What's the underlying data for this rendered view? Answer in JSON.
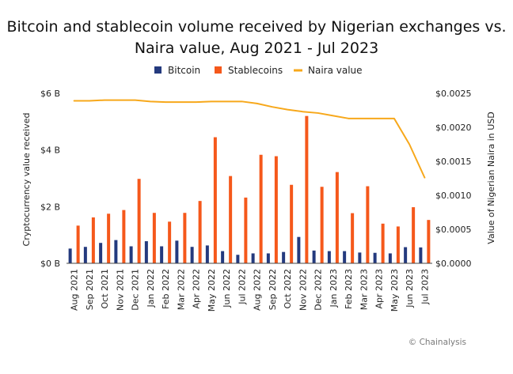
{
  "chart_data": {
    "type": "bar",
    "title": [
      "Bitcoin and stablecoin volume received by Nigerian exchanges vs.",
      "Naira value, Aug 2021 - Jul 2023"
    ],
    "categories": [
      "Aug 2021",
      "Sep 2021",
      "Oct 2021",
      "Nov 2021",
      "Dec 2021",
      "Jan 2022",
      "Feb 2022",
      "Mar 2022",
      "Apr 2022",
      "May 2022",
      "Jun 2022",
      "Jul 2022",
      "Aug 2022",
      "Sep 2022",
      "Oct 2022",
      "Nov 2022",
      "Dec 2022",
      "Jan 2023",
      "Feb 2023",
      "Mar 2023",
      "Apr 2023",
      "May 2023",
      "Jun 2023",
      "Jul 2023"
    ],
    "series": [
      {
        "name": "Bitcoin",
        "type": "bar",
        "axis": "left",
        "color": "#243a7e",
        "values": [
          0.52,
          0.58,
          0.72,
          0.82,
          0.6,
          0.78,
          0.6,
          0.8,
          0.58,
          0.63,
          0.43,
          0.3,
          0.35,
          0.35,
          0.4,
          0.93,
          0.45,
          0.43,
          0.43,
          0.38,
          0.37,
          0.35,
          0.57,
          0.56
        ]
      },
      {
        "name": "Stablecoins",
        "type": "bar",
        "axis": "left",
        "color": "#f5581b",
        "values": [
          1.33,
          1.62,
          1.75,
          1.88,
          2.98,
          1.78,
          1.47,
          1.78,
          2.2,
          4.45,
          3.08,
          2.32,
          3.83,
          3.78,
          2.77,
          5.2,
          2.7,
          3.22,
          1.77,
          2.72,
          1.4,
          1.3,
          1.98,
          1.53
        ]
      },
      {
        "name": "Naira value",
        "type": "line",
        "axis": "right",
        "color": "#f7a81b",
        "values": [
          0.00239,
          0.00239,
          0.0024,
          0.0024,
          0.0024,
          0.00238,
          0.00237,
          0.00237,
          0.00237,
          0.00238,
          0.00238,
          0.00238,
          0.00235,
          0.0023,
          0.00226,
          0.00223,
          0.00221,
          0.00217,
          0.00213,
          0.00213,
          0.00213,
          0.00213,
          0.00175,
          0.00126
        ]
      }
    ],
    "ylabel": "Cryptocurrency value received",
    "ylim": [
      0,
      6
    ],
    "yticks": [
      "$0 B",
      "$2 B",
      "$4 B",
      "$6 B"
    ],
    "y2label": "Value of Nigerian Naira in USD",
    "y2lim": [
      0,
      0.0025
    ],
    "y2ticks": [
      "$0.0000",
      "$0.0005",
      "$0.0010",
      "$0.0015",
      "$0.0020",
      "$0.0025"
    ],
    "legend": [
      "Bitcoin",
      "Stablecoins",
      "Naira value"
    ],
    "legend_position": "top-center",
    "grid": false,
    "credit": "© Chainalysis"
  }
}
